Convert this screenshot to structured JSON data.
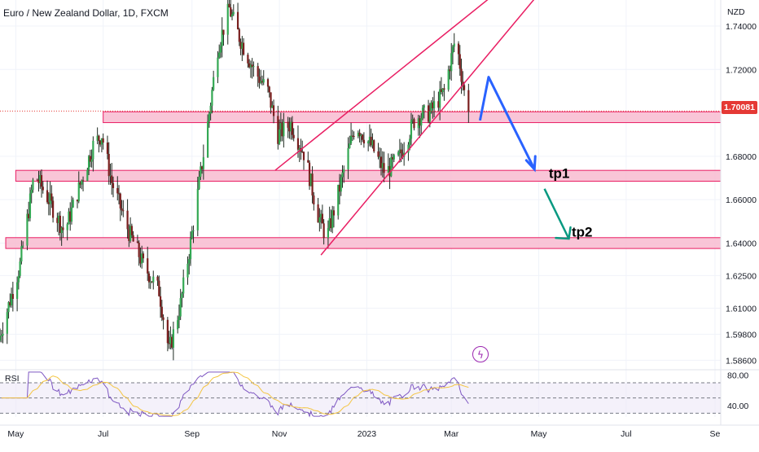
{
  "chart_title": "Euro / New Zealand Dollar, 1D, FXCM",
  "currency_label": "NZD",
  "current_price": "1.70081",
  "rsi_label": "RSI",
  "flash_icon": "lightning-bolt-icon",
  "colors": {
    "up": "#26a69a",
    "down": "#ef5350",
    "candle_body_up": "#33a853",
    "candle_body_down": "#7a1f1f",
    "zone_fill": "#f8bbd0",
    "zone_border": "#e91e63",
    "wedge_line": "#e91e63",
    "arrow_blue": "#2962ff",
    "arrow_green": "#089981",
    "price_badge": "#e53935",
    "rsi_line": "#7e57c2",
    "rsi_ma": "#f4c542",
    "rsi_band": "#ede7f6"
  },
  "chart_data": {
    "type": "candlestick",
    "title": "Euro / New Zealand Dollar, 1D, FXCM",
    "y_unit": "NZD",
    "ylim": [
      1.582,
      1.752
    ],
    "y_ticks": [
      "1.74000",
      "1.72000",
      "1.70081",
      "1.68000",
      "1.66000",
      "1.64000",
      "1.62500",
      "1.61000",
      "1.59800",
      "1.58600"
    ],
    "y_tick_values": [
      1.74,
      1.72,
      1.70081,
      1.68,
      1.66,
      1.64,
      1.625,
      1.61,
      1.598,
      1.586
    ],
    "x_ticks": [
      "May",
      "Jul",
      "Sep",
      "Nov",
      "2023",
      "Mar",
      "May",
      "Jul",
      "Se"
    ],
    "x_tick_dates": [
      "2022-05-01",
      "2022-07-01",
      "2022-09-01",
      "2022-11-01",
      "2023-01-01",
      "2023-03-01",
      "2023-05-01",
      "2023-07-01",
      "2023-09-01"
    ],
    "x_range": [
      "2022-04-20",
      "2023-09-05"
    ],
    "last_date": "2023-03-13",
    "price_path": [
      [
        "2022-04-20",
        1.595
      ],
      [
        "2022-05-05",
        1.63
      ],
      [
        "2022-05-15",
        1.672
      ],
      [
        "2022-05-25",
        1.66
      ],
      [
        "2022-06-05",
        1.645
      ],
      [
        "2022-06-15",
        1.665
      ],
      [
        "2022-06-25",
        1.685
      ],
      [
        "2022-07-01",
        1.69
      ],
      [
        "2022-07-08",
        1.668
      ],
      [
        "2022-07-20",
        1.645
      ],
      [
        "2022-07-30",
        1.63
      ],
      [
        "2022-08-10",
        1.618
      ],
      [
        "2022-08-17",
        1.59
      ],
      [
        "2022-08-25",
        1.612
      ],
      [
        "2022-09-01",
        1.64
      ],
      [
        "2022-09-12",
        1.69
      ],
      [
        "2022-09-20",
        1.73
      ],
      [
        "2022-09-28",
        1.748
      ],
      [
        "2022-10-05",
        1.735
      ],
      [
        "2022-10-15",
        1.72
      ],
      [
        "2022-10-25",
        1.71
      ],
      [
        "2022-11-01",
        1.69
      ],
      [
        "2022-11-10",
        1.695
      ],
      [
        "2022-11-20",
        1.68
      ],
      [
        "2022-11-28",
        1.655
      ],
      [
        "2022-12-05",
        1.642
      ],
      [
        "2022-12-15",
        1.668
      ],
      [
        "2022-12-25",
        1.695
      ],
      [
        "2023-01-05",
        1.685
      ],
      [
        "2023-01-15",
        1.672
      ],
      [
        "2023-01-25",
        1.68
      ],
      [
        "2023-02-05",
        1.698
      ],
      [
        "2023-02-15",
        1.7
      ],
      [
        "2023-02-25",
        1.71
      ],
      [
        "2023-03-05",
        1.735
      ],
      [
        "2023-03-13",
        1.70081
      ]
    ],
    "zones": [
      {
        "from": 1.6955,
        "to": 1.7005
      },
      {
        "from": 1.6685,
        "to": 1.6735
      },
      {
        "from": 1.6375,
        "to": 1.6425
      }
    ],
    "rsi": {
      "label": "RSI",
      "ylim": [
        25,
        85
      ],
      "y_ticks": [
        "80.00",
        "40.00"
      ],
      "y_tick_values": [
        80,
        40
      ],
      "bands": [
        70,
        50,
        30
      ]
    },
    "annotations": [
      "tp1",
      "tp2"
    ]
  }
}
